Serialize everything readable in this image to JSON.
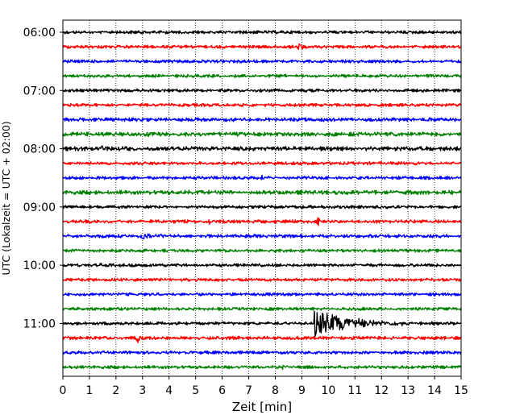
{
  "chart_data": {
    "type": "line",
    "title": "",
    "xlabel": "Zeit  [min]",
    "ylabel": "UTC (Lokalzeit = UTC + 02:00)",
    "xlim": [
      0,
      15
    ],
    "x_ticks": [
      "0",
      "1",
      "2",
      "3",
      "4",
      "5",
      "6",
      "7",
      "8",
      "9",
      "10",
      "11",
      "12",
      "13",
      "14",
      "15"
    ],
    "y_tick_labels": [
      {
        "time": "06:00",
        "trace_index": 0
      },
      {
        "time": "07:00",
        "trace_index": 4
      },
      {
        "time": "08:00",
        "trace_index": 8
      },
      {
        "time": "09:00",
        "trace_index": 12
      },
      {
        "time": "10:00",
        "trace_index": 16
      },
      {
        "time": "11:00",
        "trace_index": 20
      }
    ],
    "grid": {
      "vertical": true,
      "style": "dotted"
    },
    "trace_interval_minutes": 15,
    "color_cycle": [
      "#000000",
      "#ff0000",
      "#0000ff",
      "#008000"
    ],
    "traces": [
      {
        "start": "06:00",
        "color": "#000000",
        "noise": 1.0,
        "events": [
          {
            "t": 3.4,
            "amp": 2
          }
        ]
      },
      {
        "start": "06:15",
        "color": "#ff0000",
        "noise": 1.0,
        "events": [
          {
            "t": 8.9,
            "amp": 6
          }
        ]
      },
      {
        "start": "06:30",
        "color": "#0000ff",
        "noise": 1.0,
        "events": []
      },
      {
        "start": "06:45",
        "color": "#008000",
        "noise": 1.0,
        "events": []
      },
      {
        "start": "07:00",
        "color": "#000000",
        "noise": 1.0,
        "events": []
      },
      {
        "start": "07:15",
        "color": "#ff0000",
        "noise": 1.0,
        "events": []
      },
      {
        "start": "07:30",
        "color": "#0000ff",
        "noise": 1.2,
        "events": [
          {
            "t": 9.3,
            "amp": 2
          }
        ]
      },
      {
        "start": "07:45",
        "color": "#008000",
        "noise": 1.3,
        "events": [
          {
            "t": 3.2,
            "amp": 3
          }
        ]
      },
      {
        "start": "08:00",
        "color": "#000000",
        "noise": 1.4,
        "events": [
          {
            "t": 1.5,
            "amp": 4
          }
        ]
      },
      {
        "start": "08:15",
        "color": "#ff0000",
        "noise": 1.0,
        "events": []
      },
      {
        "start": "08:30",
        "color": "#0000ff",
        "noise": 1.0,
        "events": [
          {
            "t": 7.5,
            "amp": 2
          }
        ]
      },
      {
        "start": "08:45",
        "color": "#008000",
        "noise": 1.3,
        "events": [
          {
            "t": 4.6,
            "amp": 3
          }
        ]
      },
      {
        "start": "09:00",
        "color": "#000000",
        "noise": 1.0,
        "events": []
      },
      {
        "start": "09:15",
        "color": "#ff0000",
        "noise": 1.1,
        "events": [
          {
            "t": 5.5,
            "amp": 3
          },
          {
            "t": 9.6,
            "amp": 6
          }
        ]
      },
      {
        "start": "09:30",
        "color": "#0000ff",
        "noise": 1.1,
        "events": [
          {
            "t": 3.0,
            "amp": 6
          },
          {
            "t": 3.7,
            "amp": 5
          }
        ]
      },
      {
        "start": "09:45",
        "color": "#008000",
        "noise": 1.0,
        "events": []
      },
      {
        "start": "10:00",
        "color": "#000000",
        "noise": 1.0,
        "events": [
          {
            "t": 1.4,
            "amp": 3
          }
        ]
      },
      {
        "start": "10:15",
        "color": "#ff0000",
        "noise": 1.0,
        "events": []
      },
      {
        "start": "10:30",
        "color": "#0000ff",
        "noise": 1.0,
        "events": []
      },
      {
        "start": "10:45",
        "color": "#008000",
        "noise": 1.0,
        "events": []
      },
      {
        "start": "11:00",
        "color": "#000000",
        "noise": 1.0,
        "events": [
          {
            "t": 9.5,
            "amp": 17,
            "decay": 1.3
          }
        ]
      },
      {
        "start": "11:15",
        "color": "#ff0000",
        "noise": 1.1,
        "events": [
          {
            "t": 2.8,
            "amp": 7
          }
        ]
      },
      {
        "start": "11:30",
        "color": "#0000ff",
        "noise": 1.0,
        "events": []
      },
      {
        "start": "11:45",
        "color": "#008000",
        "noise": 1.0,
        "events": [
          {
            "t": 8.3,
            "amp": 3
          }
        ]
      }
    ]
  }
}
